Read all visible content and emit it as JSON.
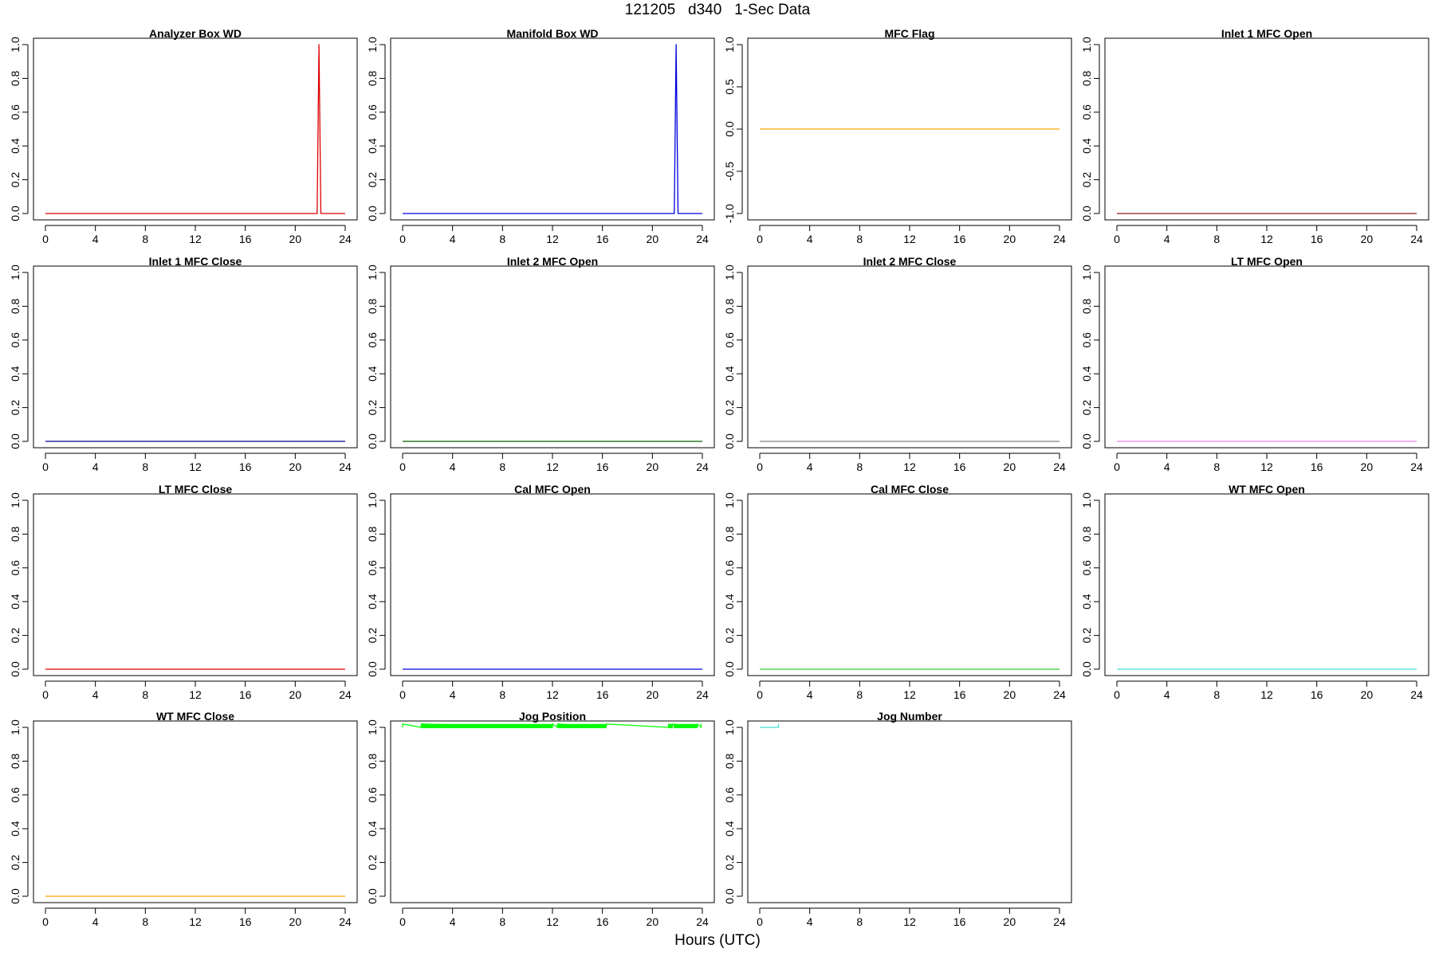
{
  "figure": {
    "title": "121205   d340   1-Sec Data",
    "xlabel": "Hours (UTC)"
  },
  "chart_data": [
    {
      "type": "line",
      "title": "Analyzer Box WD",
      "color": "#dd0000",
      "xlim": [
        0,
        24
      ],
      "ylim": [
        0,
        1
      ],
      "xticks": [
        0,
        4,
        8,
        12,
        16,
        20,
        24
      ],
      "yticks": [
        0.0,
        0.2,
        0.4,
        0.6,
        0.8,
        1.0
      ],
      "series": [
        {
          "x": [
            0,
            21.75,
            21.9,
            22.05,
            24
          ],
          "y": [
            0,
            0,
            1,
            0,
            0
          ]
        }
      ]
    },
    {
      "type": "line",
      "title": "Manifold Box WD",
      "color": "#0000dd",
      "xlim": [
        0,
        24
      ],
      "ylim": [
        0,
        1
      ],
      "xticks": [
        0,
        4,
        8,
        12,
        16,
        20,
        24
      ],
      "yticks": [
        0.0,
        0.2,
        0.4,
        0.6,
        0.8,
        1.0
      ],
      "series": [
        {
          "x": [
            0,
            21.75,
            21.9,
            22.05,
            24
          ],
          "y": [
            0,
            0,
            1,
            0,
            0
          ]
        }
      ]
    },
    {
      "type": "line",
      "title": "MFC Flag",
      "color": "#ffa500",
      "xlim": [
        0,
        24
      ],
      "ylim": [
        -1,
        1
      ],
      "xticks": [
        0,
        4,
        8,
        12,
        16,
        20,
        24
      ],
      "yticks": [
        -1.0,
        -0.5,
        0.0,
        0.5,
        1.0
      ],
      "series": [
        {
          "x": [
            0,
            24
          ],
          "y": [
            0,
            0
          ]
        }
      ]
    },
    {
      "type": "line",
      "title": "Inlet 1 MFC Open",
      "color": "#8b1a1a",
      "xlim": [
        0,
        24
      ],
      "ylim": [
        0,
        1
      ],
      "xticks": [
        0,
        4,
        8,
        12,
        16,
        20,
        24
      ],
      "yticks": [
        0.0,
        0.2,
        0.4,
        0.6,
        0.8,
        1.0
      ],
      "series": [
        {
          "x": [
            0,
            24
          ],
          "y": [
            0,
            0
          ]
        }
      ]
    },
    {
      "type": "line",
      "title": "Inlet 1 MFC Close",
      "color": "#00008b",
      "xlim": [
        0,
        24
      ],
      "ylim": [
        0,
        1
      ],
      "xticks": [
        0,
        4,
        8,
        12,
        16,
        20,
        24
      ],
      "yticks": [
        0.0,
        0.2,
        0.4,
        0.6,
        0.8,
        1.0
      ],
      "series": [
        {
          "x": [
            0,
            24
          ],
          "y": [
            0,
            0
          ]
        }
      ]
    },
    {
      "type": "line",
      "title": "Inlet 2 MFC Open",
      "color": "#006400",
      "xlim": [
        0,
        24
      ],
      "ylim": [
        0,
        1
      ],
      "xticks": [
        0,
        4,
        8,
        12,
        16,
        20,
        24
      ],
      "yticks": [
        0.0,
        0.2,
        0.4,
        0.6,
        0.8,
        1.0
      ],
      "series": [
        {
          "x": [
            0,
            24
          ],
          "y": [
            0,
            0
          ]
        }
      ]
    },
    {
      "type": "line",
      "title": "Inlet 2 MFC Close",
      "color": "#808080",
      "xlim": [
        0,
        24
      ],
      "ylim": [
        0,
        1
      ],
      "xticks": [
        0,
        4,
        8,
        12,
        16,
        20,
        24
      ],
      "yticks": [
        0.0,
        0.2,
        0.4,
        0.6,
        0.8,
        1.0
      ],
      "series": [
        {
          "x": [
            0,
            24
          ],
          "y": [
            0,
            0
          ]
        }
      ]
    },
    {
      "type": "line",
      "title": "LT MFC Open",
      "color": "#ee82ee",
      "xlim": [
        0,
        24
      ],
      "ylim": [
        0,
        1
      ],
      "xticks": [
        0,
        4,
        8,
        12,
        16,
        20,
        24
      ],
      "yticks": [
        0.0,
        0.2,
        0.4,
        0.6,
        0.8,
        1.0
      ],
      "series": [
        {
          "x": [
            0,
            24
          ],
          "y": [
            0,
            0
          ]
        }
      ]
    },
    {
      "type": "line",
      "title": "LT MFC Close",
      "color": "#dd0000",
      "xlim": [
        0,
        24
      ],
      "ylim": [
        0,
        1
      ],
      "xticks": [
        0,
        4,
        8,
        12,
        16,
        20,
        24
      ],
      "yticks": [
        0.0,
        0.2,
        0.4,
        0.6,
        0.8,
        1.0
      ],
      "series": [
        {
          "x": [
            0,
            24
          ],
          "y": [
            0,
            0
          ]
        }
      ]
    },
    {
      "type": "line",
      "title": "Cal MFC Open",
      "color": "#0000dd",
      "xlim": [
        0,
        24
      ],
      "ylim": [
        0,
        1
      ],
      "xticks": [
        0,
        4,
        8,
        12,
        16,
        20,
        24
      ],
      "yticks": [
        0.0,
        0.2,
        0.4,
        0.6,
        0.8,
        1.0
      ],
      "series": [
        {
          "x": [
            0,
            24
          ],
          "y": [
            0,
            0
          ]
        }
      ]
    },
    {
      "type": "line",
      "title": "Cal MFC Close",
      "color": "#32cd32",
      "xlim": [
        0,
        24
      ],
      "ylim": [
        0,
        1
      ],
      "xticks": [
        0,
        4,
        8,
        12,
        16,
        20,
        24
      ],
      "yticks": [
        0.0,
        0.2,
        0.4,
        0.6,
        0.8,
        1.0
      ],
      "series": [
        {
          "x": [
            0,
            24
          ],
          "y": [
            0,
            0
          ]
        }
      ]
    },
    {
      "type": "line",
      "title": "WT MFC Open",
      "color": "#40e0d0",
      "xlim": [
        0,
        24
      ],
      "ylim": [
        0,
        1
      ],
      "xticks": [
        0,
        4,
        8,
        12,
        16,
        20,
        24
      ],
      "yticks": [
        0.0,
        0.2,
        0.4,
        0.6,
        0.8,
        1.0
      ],
      "series": [
        {
          "x": [
            0,
            24
          ],
          "y": [
            0,
            0
          ]
        }
      ]
    },
    {
      "type": "line",
      "title": "WT MFC Close",
      "color": "#ffa500",
      "xlim": [
        0,
        24
      ],
      "ylim": [
        0,
        1
      ],
      "xticks": [
        0,
        4,
        8,
        12,
        16,
        20,
        24
      ],
      "yticks": [
        0.0,
        0.2,
        0.4,
        0.6,
        0.8,
        1.0
      ],
      "series": [
        {
          "x": [
            0,
            24
          ],
          "y": [
            0,
            0
          ]
        }
      ]
    },
    {
      "type": "line",
      "title": "Jog Position",
      "color": "#00ff00",
      "xlim": [
        0,
        24
      ],
      "ylim": [
        0,
        1
      ],
      "xticks": [
        0,
        4,
        8,
        12,
        16,
        20,
        24
      ],
      "yticks": [
        0.0,
        0.2,
        0.4,
        0.6,
        0.8,
        1.0
      ],
      "series": [
        {
          "x": [
            0,
            0,
            1.5,
            1.5,
            12,
            12,
            12.4,
            12.4,
            16.3,
            16.3,
            21.3,
            21.3,
            21.6,
            21.6,
            23.6,
            23.6,
            23.9,
            23.9
          ],
          "y": [
            1.0,
            1.02,
            1.0,
            1.02,
            1.0,
            1.02,
            1.0,
            1.02,
            1.0,
            1.02,
            1.0,
            1.02,
            1.0,
            1.02,
            1.0,
            1.02,
            1.0,
            1.02
          ]
        }
      ],
      "bands": [
        [
          1.5,
          12.0
        ],
        [
          12.4,
          16.3
        ],
        [
          21.3,
          21.6
        ],
        [
          21.7,
          23.6
        ]
      ],
      "band_y": [
        0.995,
        1.02
      ]
    },
    {
      "type": "line",
      "title": "Jog Number",
      "color": "#40e0d0",
      "xlim": [
        0,
        24
      ],
      "ylim": [
        0,
        1
      ],
      "xticks": [
        0,
        4,
        8,
        12,
        16,
        20,
        24
      ],
      "yticks": [
        0.0,
        0.2,
        0.4,
        0.6,
        0.8,
        1.0
      ],
      "series": [
        {
          "x": [
            0,
            1.5,
            1.5
          ],
          "y": [
            1.0,
            1.0,
            1.02
          ]
        }
      ]
    }
  ]
}
